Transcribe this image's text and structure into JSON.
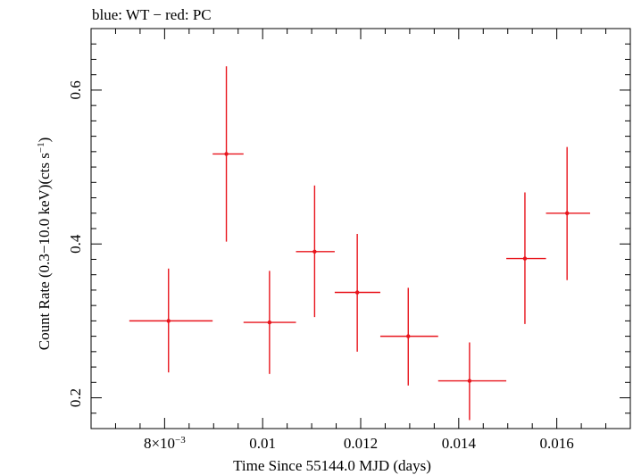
{
  "chart_data": {
    "type": "scatter",
    "title": "blue: WT − red: PC",
    "xlabel": "Time Since 55144.0 MJD (days)",
    "ylabel_main": "Count Rate (0.3−10.0 keV)(cts s",
    "ylabel_sup": "−1",
    "ylabel_end": ")",
    "xlim": [
      0.0065,
      0.0175
    ],
    "ylim": [
      0.16,
      0.68
    ],
    "x_ticks": [
      {
        "value": 0.008,
        "label_main": "8×10",
        "label_sup": "−3"
      },
      {
        "value": 0.01,
        "label_main": "0.01",
        "label_sup": ""
      },
      {
        "value": 0.012,
        "label_main": "0.012",
        "label_sup": ""
      },
      {
        "value": 0.014,
        "label_main": "0.014",
        "label_sup": ""
      },
      {
        "value": 0.016,
        "label_main": "0.016",
        "label_sup": ""
      }
    ],
    "y_ticks": [
      {
        "value": 0.2,
        "label": "0.2"
      },
      {
        "value": 0.4,
        "label": "0.4"
      },
      {
        "value": 0.6,
        "label": "0.6"
      }
    ],
    "grid": false,
    "series": [
      {
        "color": "#e8141c",
        "points": [
          {
            "x": 0.00808,
            "xlo": 0.00728,
            "xhi": 0.00898,
            "y": 0.3,
            "ylo": 0.233,
            "yhi": 0.368
          },
          {
            "x": 0.00926,
            "xlo": 0.00898,
            "xhi": 0.00961,
            "y": 0.517,
            "ylo": 0.403,
            "yhi": 0.631
          },
          {
            "x": 0.01014,
            "xlo": 0.00961,
            "xhi": 0.01068,
            "y": 0.298,
            "ylo": 0.231,
            "yhi": 0.365
          },
          {
            "x": 0.01106,
            "xlo": 0.01068,
            "xhi": 0.01147,
            "y": 0.39,
            "ylo": 0.305,
            "yhi": 0.476
          },
          {
            "x": 0.01193,
            "xlo": 0.01147,
            "xhi": 0.0124,
            "y": 0.337,
            "ylo": 0.26,
            "yhi": 0.413
          },
          {
            "x": 0.01297,
            "xlo": 0.0124,
            "xhi": 0.01358,
            "y": 0.28,
            "ylo": 0.216,
            "yhi": 0.343
          },
          {
            "x": 0.01422,
            "xlo": 0.01358,
            "xhi": 0.01497,
            "y": 0.222,
            "ylo": 0.171,
            "yhi": 0.272
          },
          {
            "x": 0.01535,
            "xlo": 0.01497,
            "xhi": 0.01578,
            "y": 0.381,
            "ylo": 0.296,
            "yhi": 0.467
          },
          {
            "x": 0.01621,
            "xlo": 0.01578,
            "xhi": 0.01668,
            "y": 0.44,
            "ylo": 0.353,
            "yhi": 0.526
          }
        ]
      }
    ]
  }
}
